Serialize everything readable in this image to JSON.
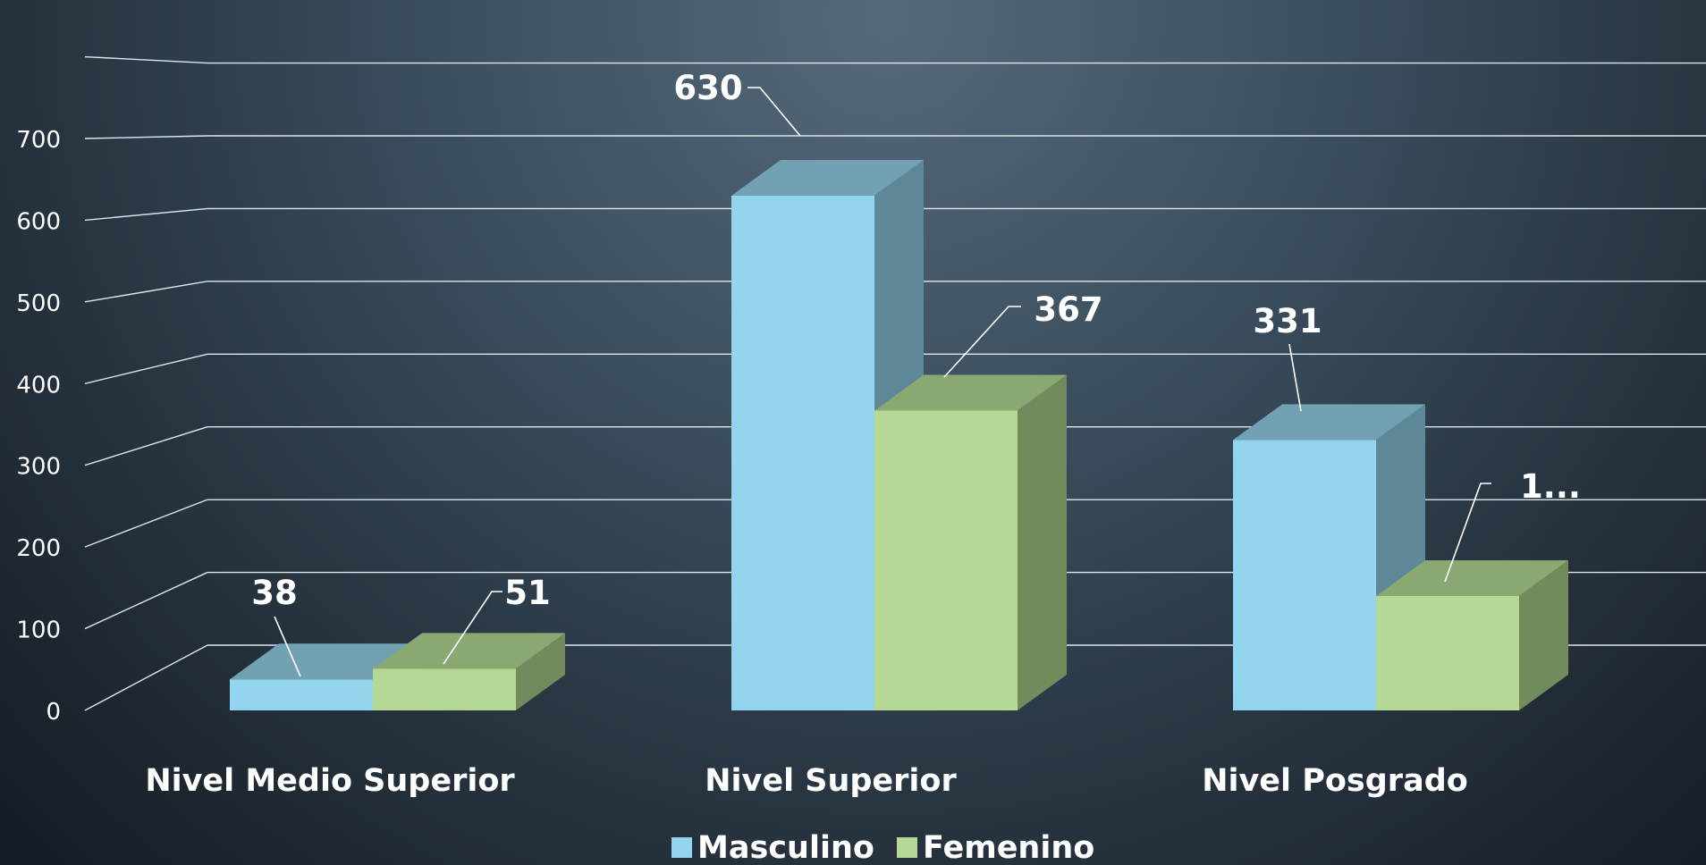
{
  "chart_data": {
    "type": "bar",
    "categories": [
      "Nivel Medio Superior",
      "Nivel Superior",
      "Nivel Posgrado"
    ],
    "series": [
      {
        "name": "Masculino",
        "values": [
          38,
          630,
          331
        ],
        "labels": [
          "38",
          "630",
          "331"
        ],
        "color": "#93d5ee",
        "top_color": "#72a1b3",
        "side_color": "#5e8898"
      },
      {
        "name": "Femenino",
        "values": [
          51,
          367,
          140
        ],
        "labels": [
          "51",
          "367",
          "1..."
        ],
        "color": "#b5d994",
        "top_color": "#89a872",
        "side_color": "#718b5c"
      }
    ],
    "yticks": [
      "0",
      "100",
      "200",
      "300",
      "400",
      "500",
      "600",
      "700"
    ],
    "ylim": [
      0,
      800
    ],
    "grid": true,
    "three_d": true,
    "legend_position": "bottom"
  }
}
